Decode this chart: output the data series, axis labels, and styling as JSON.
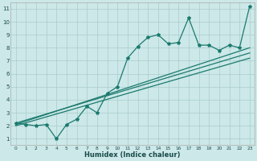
{
  "xlabel": "Humidex (Indice chaleur)",
  "bg_color": "#cce8e8",
  "grid_color": "#aacccc",
  "line_color": "#1a7a6e",
  "xlim": [
    -0.5,
    23.5
  ],
  "ylim": [
    0.5,
    11.5
  ],
  "xticks": [
    0,
    1,
    2,
    3,
    4,
    5,
    6,
    7,
    8,
    9,
    10,
    11,
    12,
    13,
    14,
    15,
    16,
    17,
    18,
    19,
    20,
    21,
    22,
    23
  ],
  "yticks": [
    1,
    2,
    3,
    4,
    5,
    6,
    7,
    8,
    9,
    10,
    11
  ],
  "data_x": [
    0,
    1,
    2,
    3,
    4,
    5,
    6,
    7,
    8,
    9,
    10,
    11,
    12,
    13,
    14,
    15,
    16,
    17,
    18,
    19,
    20,
    21,
    22,
    23
  ],
  "data_y": [
    2.2,
    2.1,
    2.0,
    2.1,
    1.0,
    2.1,
    2.5,
    3.5,
    3.0,
    4.5,
    5.0,
    7.2,
    8.1,
    8.8,
    9.0,
    8.3,
    8.4,
    10.3,
    8.2,
    8.2,
    7.8,
    8.2,
    8.0,
    11.2
  ],
  "reg_lines": [
    {
      "x0": 0,
      "y0": 2.1,
      "x1": 23,
      "y1": 8.0
    },
    {
      "x0": 0,
      "y0": 2.2,
      "x1": 23,
      "y1": 7.6
    },
    {
      "x0": 0,
      "y0": 2.0,
      "x1": 23,
      "y1": 7.2
    }
  ],
  "xlabel_fontsize": 6,
  "tick_fontsize": 5,
  "linewidth": 0.9,
  "markersize": 3.0
}
